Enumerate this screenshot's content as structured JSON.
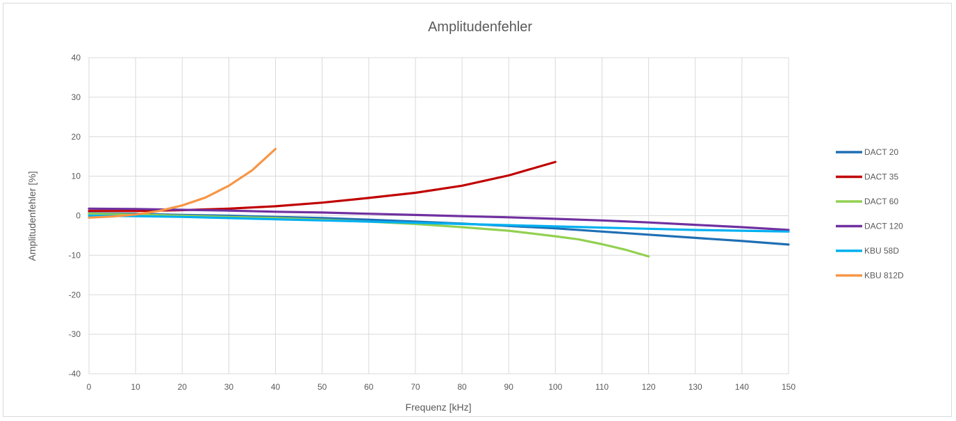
{
  "chart_data": {
    "type": "line",
    "title": "Amplitudenfehler",
    "xlabel": "Frequenz [kHz]",
    "ylabel": "Amplitudenfehler [%]",
    "xlim": [
      0,
      150
    ],
    "ylim": [
      -40,
      40
    ],
    "xticks": [
      0,
      10,
      20,
      30,
      40,
      50,
      60,
      70,
      80,
      90,
      100,
      110,
      120,
      130,
      140,
      150
    ],
    "yticks": [
      -40,
      -30,
      -20,
      -10,
      0,
      10,
      20,
      30,
      40
    ],
    "grid": true,
    "legend_position": "right",
    "series": [
      {
        "name": "DACT 20",
        "color": "#1f6fb4",
        "x": [
          0,
          10,
          20,
          30,
          40,
          50,
          60,
          70,
          80,
          90,
          100,
          110,
          120,
          130,
          140,
          150
        ],
        "y": [
          0.6,
          0.5,
          0.2,
          0.0,
          -0.3,
          -0.6,
          -1.0,
          -1.5,
          -2.0,
          -2.6,
          -3.2,
          -4.0,
          -4.8,
          -5.6,
          -6.4,
          -7.3
        ]
      },
      {
        "name": "DACT 35",
        "color": "#c00000",
        "x": [
          0,
          5,
          10,
          20,
          30,
          40,
          50,
          60,
          70,
          80,
          90,
          100
        ],
        "y": [
          1.2,
          1.2,
          1.2,
          1.4,
          1.8,
          2.4,
          3.3,
          4.5,
          5.8,
          7.6,
          10.2,
          13.6
        ]
      },
      {
        "name": "DACT 60",
        "color": "#92d050",
        "x": [
          0,
          10,
          20,
          30,
          40,
          50,
          60,
          70,
          80,
          90,
          100,
          105,
          110,
          115,
          120
        ],
        "y": [
          0.5,
          0.3,
          0.0,
          -0.3,
          -0.6,
          -1.0,
          -1.5,
          -2.1,
          -2.9,
          -3.8,
          -5.2,
          -6.0,
          -7.2,
          -8.6,
          -10.3
        ]
      },
      {
        "name": "DACT 120",
        "color": "#7030a0",
        "x": [
          0,
          10,
          20,
          30,
          40,
          50,
          60,
          70,
          80,
          90,
          100,
          110,
          120,
          130,
          140,
          150
        ],
        "y": [
          1.8,
          1.7,
          1.5,
          1.3,
          1.0,
          0.8,
          0.5,
          0.2,
          -0.1,
          -0.4,
          -0.8,
          -1.2,
          -1.7,
          -2.3,
          -2.9,
          -3.6
        ]
      },
      {
        "name": "KBU 58D",
        "color": "#00b0f0",
        "x": [
          0,
          10,
          20,
          30,
          40,
          50,
          60,
          70,
          80,
          90,
          100,
          110,
          120,
          130,
          140,
          150
        ],
        "y": [
          0.0,
          -0.1,
          -0.3,
          -0.6,
          -0.9,
          -1.2,
          -1.5,
          -1.8,
          -2.1,
          -2.4,
          -2.7,
          -3.0,
          -3.3,
          -3.6,
          -3.8,
          -4.0
        ]
      },
      {
        "name": "KBU 812D",
        "color": "#f79646",
        "x": [
          0,
          5,
          10,
          15,
          20,
          25,
          30,
          35,
          40
        ],
        "y": [
          -0.5,
          -0.2,
          0.3,
          1.2,
          2.6,
          4.6,
          7.6,
          11.5,
          16.9
        ]
      }
    ]
  }
}
